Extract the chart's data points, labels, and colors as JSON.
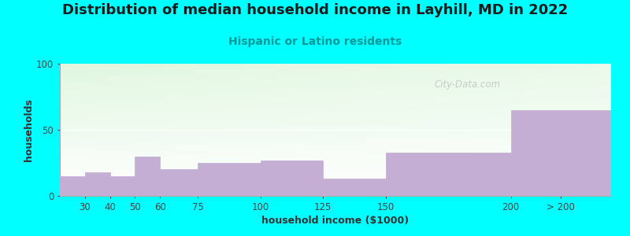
{
  "title": "Distribution of median household income in Layhill, MD in 2022",
  "subtitle": "Hispanic or Latino residents",
  "xlabel": "household income ($1000)",
  "ylabel": "households",
  "background_outer": "#00FFFF",
  "bar_color": "#C4AED4",
  "bar_edgecolor": "#C4AED4",
  "ylim": [
    0,
    100
  ],
  "yticks": [
    0,
    50,
    100
  ],
  "categories": [
    "30",
    "40",
    "50",
    "60",
    "75",
    "100",
    "125",
    "150",
    "200",
    "> 200"
  ],
  "values": [
    15,
    18,
    15,
    30,
    20,
    25,
    27,
    13,
    33,
    65
  ],
  "watermark": "City-Data.com",
  "title_fontsize": 13,
  "subtitle_fontsize": 10,
  "label_fontsize": 9,
  "tick_fontsize": 8.5,
  "bar_left_edges": [
    20,
    30,
    40,
    50,
    60,
    75,
    100,
    125,
    150,
    200
  ],
  "bar_right_edges": [
    30,
    40,
    50,
    60,
    75,
    100,
    125,
    150,
    200,
    240
  ],
  "tick_positions": [
    30,
    40,
    50,
    60,
    75,
    100,
    125,
    150,
    200
  ],
  "xlim": [
    20,
    240
  ]
}
